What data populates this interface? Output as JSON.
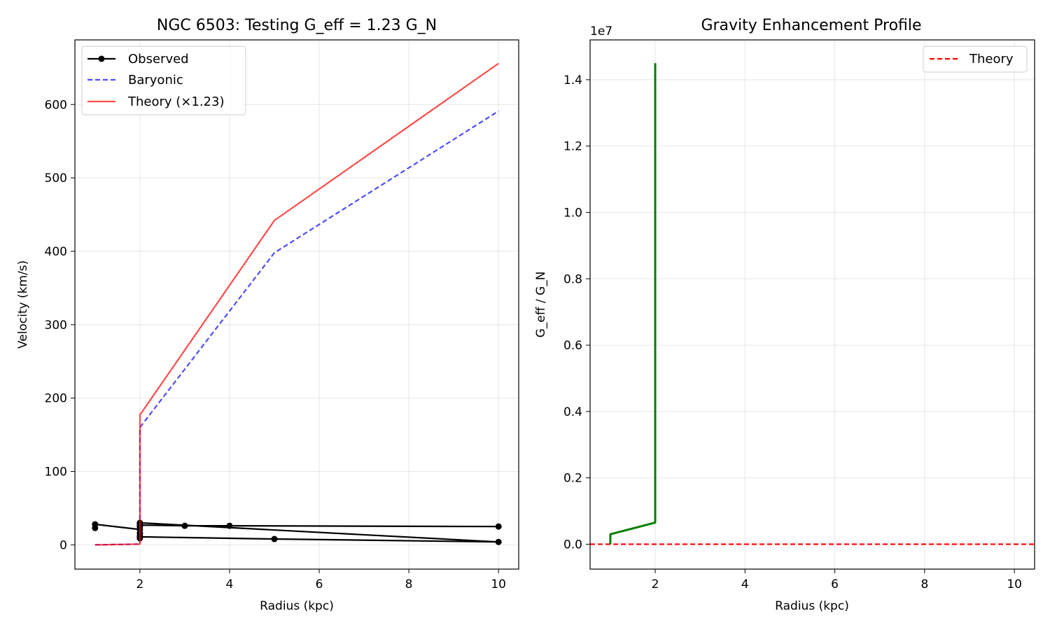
{
  "chart_data": [
    {
      "type": "line",
      "title": "NGC 6503: Testing G_eff = 1.23 G_N",
      "xlabel": "Radius (kpc)",
      "ylabel": "Velocity (km/s)",
      "xlim": [
        0.55,
        10.45
      ],
      "ylim": [
        -33,
        688
      ],
      "xticks": [
        2,
        4,
        6,
        8,
        10
      ],
      "yticks": [
        0,
        100,
        200,
        300,
        400,
        500,
        600
      ],
      "grid": true,
      "legend_position": "top-left",
      "series": [
        {
          "name": "Observed",
          "color": "#000000",
          "style": "solid-marker",
          "x": [
            1,
            1,
            2,
            2,
            2,
            2,
            2,
            5,
            10,
            2,
            2,
            2,
            3,
            4,
            10
          ],
          "y": [
            23,
            28,
            21,
            9,
            12,
            16,
            11,
            8,
            4,
            30,
            25,
            27,
            26,
            26,
            25
          ]
        },
        {
          "name": "Baryonic",
          "color": "#0000ff",
          "style": "dashed",
          "x": [
            1,
            2,
            2,
            5,
            10
          ],
          "y": [
            0,
            1,
            160,
            398,
            591
          ]
        },
        {
          "name": "Theory (×1.23)",
          "color": "#ff0000",
          "style": "solid",
          "x": [
            1,
            2,
            2,
            5,
            10
          ],
          "y": [
            0,
            1,
            177,
            442,
            656
          ]
        }
      ]
    },
    {
      "type": "line",
      "title": "Gravity Enhancement Profile",
      "xlabel": "Radius (kpc)",
      "ylabel": "G_eff / G_N",
      "scale_label": "1e7",
      "xlim": [
        0.55,
        10.45
      ],
      "ylim": [
        -0.075,
        1.52
      ],
      "xticks": [
        2,
        4,
        6,
        8,
        10
      ],
      "yticks": [
        0.0,
        0.2,
        0.4,
        0.6,
        0.8,
        1.0,
        1.2,
        1.4
      ],
      "ytick_labels": [
        "0.0",
        "0.2",
        "0.4",
        "0.6",
        "0.8",
        "1.0",
        "1.2",
        "1.4"
      ],
      "grid": true,
      "legend_position": "top-right",
      "series": [
        {
          "name": "",
          "color": "#008000",
          "style": "solid",
          "x": [
            1,
            1,
            2,
            2,
            2,
            2
          ],
          "y": [
            0.0,
            0.03,
            0.065,
            0.38,
            1.4,
            1.45
          ]
        }
      ],
      "reference_lines": [
        {
          "name": "Theory",
          "color": "#ff0000",
          "style": "dashed",
          "y": 0.0
        }
      ]
    }
  ]
}
